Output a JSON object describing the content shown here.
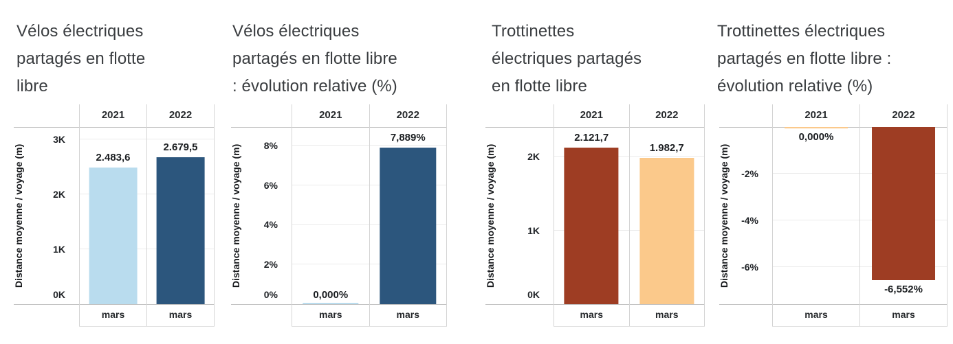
{
  "chart_data": [
    {
      "type": "bar",
      "title": "Vélos électriques\npartagés en flotte\nlibre",
      "ylabel": "Distance moyenne / voyage (m)",
      "categories": [
        "2021",
        "2022"
      ],
      "x_sublabels": [
        "mars",
        "mars"
      ],
      "values": [
        2483.6,
        2679.5
      ],
      "value_labels": [
        "2.483,6",
        "2.679,5"
      ],
      "bar_colors": [
        "#b9dcee",
        "#2c567d"
      ],
      "ylim": [
        0,
        3225
      ],
      "yticks": [
        {
          "value": 0,
          "label": "0K"
        },
        {
          "value": 1000,
          "label": "1K"
        },
        {
          "value": 2000,
          "label": "2K"
        },
        {
          "value": 3000,
          "label": "3K"
        }
      ],
      "grid": true,
      "legend": "none"
    },
    {
      "type": "bar",
      "title": "Vélos électriques\npartagés en flotte libre\n: évolution relative (%)",
      "ylabel": "Distance moyenne / voyage (m)",
      "categories": [
        "2021",
        "2022"
      ],
      "x_sublabels": [
        "mars",
        "mars"
      ],
      "values": [
        0,
        7.889
      ],
      "value_labels": [
        "0,000%",
        "7,889%"
      ],
      "bar_colors": [
        "#b9dcee",
        "#2c567d"
      ],
      "ylim": [
        0,
        8.93
      ],
      "yticks": [
        {
          "value": 0,
          "label": "0%"
        },
        {
          "value": 2,
          "label": "2%"
        },
        {
          "value": 4,
          "label": "4%"
        },
        {
          "value": 6,
          "label": "6%"
        },
        {
          "value": 8,
          "label": "8%"
        }
      ],
      "grid": true,
      "legend": "none"
    },
    {
      "type": "bar",
      "title": "Trottinettes\nélectriques partagés\nen flotte libre",
      "ylabel": "Distance moyenne / voyage (m)",
      "categories": [
        "2021",
        "2022"
      ],
      "x_sublabels": [
        "mars",
        "mars"
      ],
      "values": [
        2121.7,
        1982.7
      ],
      "value_labels": [
        "2.121,7",
        "1.982,7"
      ],
      "bar_colors": [
        "#9e3d23",
        "#fbc98b"
      ],
      "ylim": [
        0,
        2400
      ],
      "yticks": [
        {
          "value": 0,
          "label": "0K"
        },
        {
          "value": 1000,
          "label": "1K"
        },
        {
          "value": 2000,
          "label": "2K"
        }
      ],
      "grid": true,
      "legend": "none"
    },
    {
      "type": "bar",
      "title": "Trottinettes électriques\npartagés en flotte libre :\névolution relative (%)",
      "ylabel": "Distance moyenne / voyage (m)",
      "categories": [
        "2021",
        "2022"
      ],
      "x_sublabels": [
        "mars",
        "mars"
      ],
      "values": [
        0,
        -6.552
      ],
      "value_labels": [
        "0,000%",
        "-6,552%"
      ],
      "bar_colors": [
        "#fbc98b",
        "#9e3d23"
      ],
      "ylim": [
        -7.59,
        0
      ],
      "yticks": [
        {
          "value": -2,
          "label": "-2%"
        },
        {
          "value": -4,
          "label": "-4%"
        },
        {
          "value": -6,
          "label": "-6%"
        }
      ],
      "grid": true,
      "legend": "none"
    }
  ]
}
